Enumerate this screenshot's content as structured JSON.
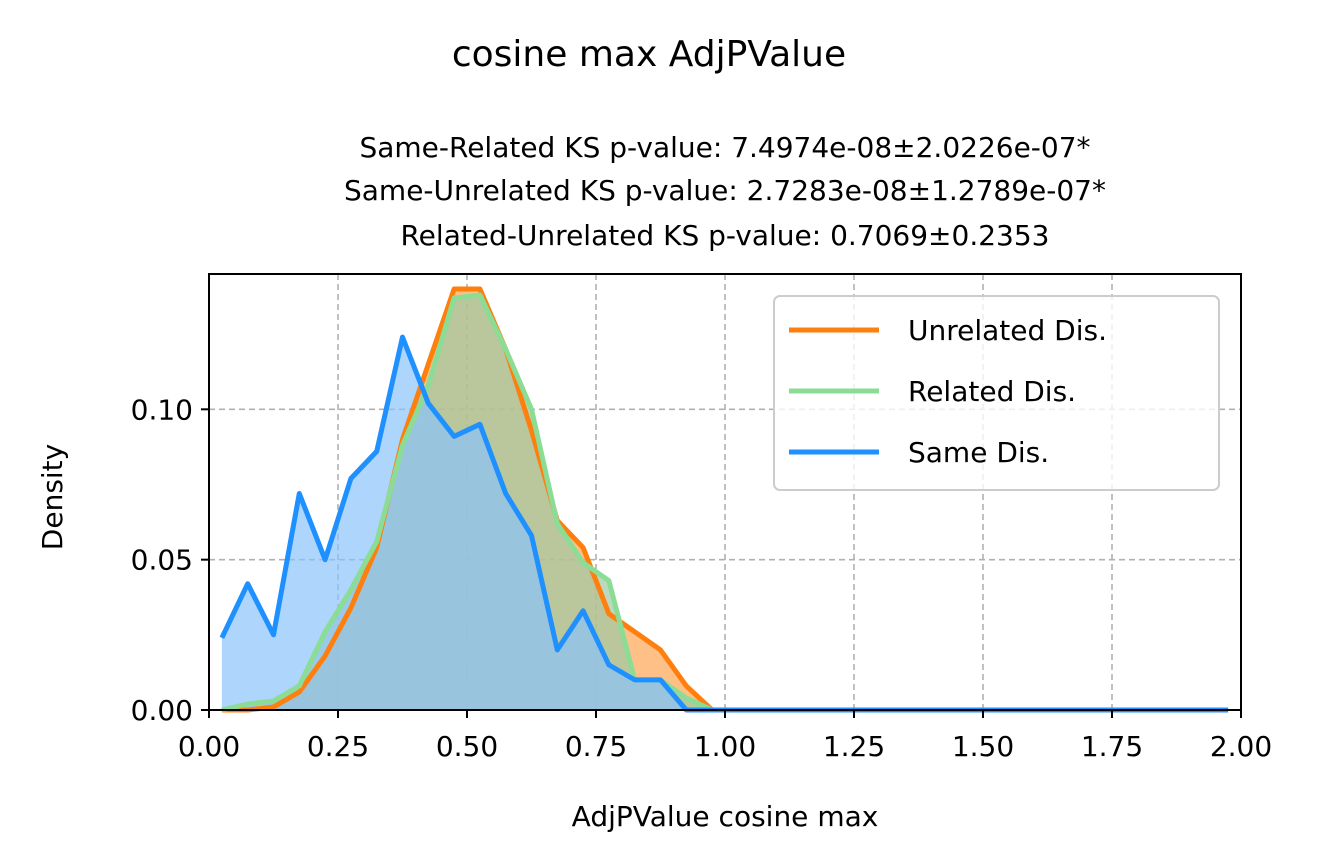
{
  "chart_data": {
    "type": "area",
    "title": "cosine max AdjPValue",
    "subtitle_lines": [
      "Same-Related KS p-value: 7.4974e-08±2.0226e-07*",
      "Same-Unrelated KS p-value: 2.7283e-08±1.2789e-07*",
      "Related-Unrelated KS p-value: 0.7069±0.2353"
    ],
    "xlabel": "AdjPValue cosine max",
    "ylabel": "Density",
    "xlim": [
      0,
      2
    ],
    "ylim": [
      0,
      0.145
    ],
    "xticks": [
      0,
      0.25,
      0.5,
      0.75,
      1.0,
      1.25,
      1.5,
      1.75,
      2.0
    ],
    "xtick_labels": [
      "0.00",
      "0.25",
      "0.50",
      "0.75",
      "1.00",
      "1.25",
      "1.50",
      "1.75",
      "2.00"
    ],
    "yticks": [
      0,
      0.05,
      0.1
    ],
    "ytick_labels": [
      "0.00",
      "0.05",
      "0.10"
    ],
    "grid": true,
    "legend_position": "upper-right",
    "series": [
      {
        "name": "Unrelated Dis.",
        "color": "#ff7f0e",
        "fill_color": "#ffa556",
        "x": [
          0.025,
          0.075,
          0.125,
          0.175,
          0.225,
          0.275,
          0.325,
          0.375,
          0.425,
          0.475,
          0.525,
          0.575,
          0.625,
          0.675,
          0.725,
          0.775,
          0.825,
          0.875,
          0.925,
          0.975,
          1.025,
          1.075,
          1.125,
          1.175,
          1.225,
          1.275,
          1.325,
          1.375,
          1.425,
          1.475,
          1.525,
          1.575,
          1.625,
          1.675,
          1.725,
          1.775,
          1.825,
          1.875,
          1.925,
          1.975
        ],
        "values": [
          0.0,
          0.0,
          0.001,
          0.006,
          0.018,
          0.034,
          0.054,
          0.09,
          0.115,
          0.14,
          0.14,
          0.12,
          0.093,
          0.063,
          0.054,
          0.032,
          0.026,
          0.02,
          0.008,
          0.0,
          0.0,
          0.0,
          0.0,
          0.0,
          0.0,
          0.0,
          0.0,
          0.0,
          0.0,
          0.0,
          0.0,
          0.0,
          0.0,
          0.0,
          0.0,
          0.0,
          0.0,
          0.0,
          0.0,
          0.0
        ]
      },
      {
        "name": "Related Dis.",
        "color": "#8bdc95",
        "fill_color": "#9cc9a4",
        "x": [
          0.025,
          0.075,
          0.125,
          0.175,
          0.225,
          0.275,
          0.325,
          0.375,
          0.425,
          0.475,
          0.525,
          0.575,
          0.625,
          0.675,
          0.725,
          0.775,
          0.825,
          0.875,
          0.925,
          0.975,
          1.025,
          1.075,
          1.125,
          1.175,
          1.225,
          1.275,
          1.325,
          1.375,
          1.425,
          1.475,
          1.525,
          1.575,
          1.625,
          1.675,
          1.725,
          1.775,
          1.825,
          1.875,
          1.925,
          1.975
        ],
        "values": [
          0.0,
          0.002,
          0.003,
          0.008,
          0.026,
          0.04,
          0.056,
          0.088,
          0.108,
          0.137,
          0.138,
          0.12,
          0.1,
          0.062,
          0.049,
          0.043,
          0.01,
          0.01,
          0.004,
          0.0,
          0.0,
          0.0,
          0.0,
          0.0,
          0.0,
          0.0,
          0.0,
          0.0,
          0.0,
          0.0,
          0.0,
          0.0,
          0.0,
          0.0,
          0.0,
          0.0,
          0.0,
          0.0,
          0.0,
          0.0
        ]
      },
      {
        "name": "Same Dis.",
        "color": "#1e90ff",
        "fill_color": "#8cc3fb",
        "x": [
          0.025,
          0.075,
          0.125,
          0.175,
          0.225,
          0.275,
          0.325,
          0.375,
          0.425,
          0.475,
          0.525,
          0.575,
          0.625,
          0.675,
          0.725,
          0.775,
          0.825,
          0.875,
          0.925,
          0.975,
          1.025,
          1.075,
          1.125,
          1.175,
          1.225,
          1.275,
          1.325,
          1.375,
          1.425,
          1.475,
          1.525,
          1.575,
          1.625,
          1.675,
          1.725,
          1.775,
          1.825,
          1.875,
          1.925,
          1.975
        ],
        "values": [
          0.024,
          0.042,
          0.025,
          0.072,
          0.05,
          0.077,
          0.086,
          0.124,
          0.102,
          0.091,
          0.095,
          0.072,
          0.058,
          0.02,
          0.033,
          0.015,
          0.01,
          0.01,
          0.0,
          0.0,
          0.0,
          0.0,
          0.0,
          0.0,
          0.0,
          0.0,
          0.0,
          0.0,
          0.0,
          0.0,
          0.0,
          0.0,
          0.0,
          0.0,
          0.0,
          0.0,
          0.0,
          0.0,
          0.0,
          0.0
        ]
      }
    ]
  }
}
